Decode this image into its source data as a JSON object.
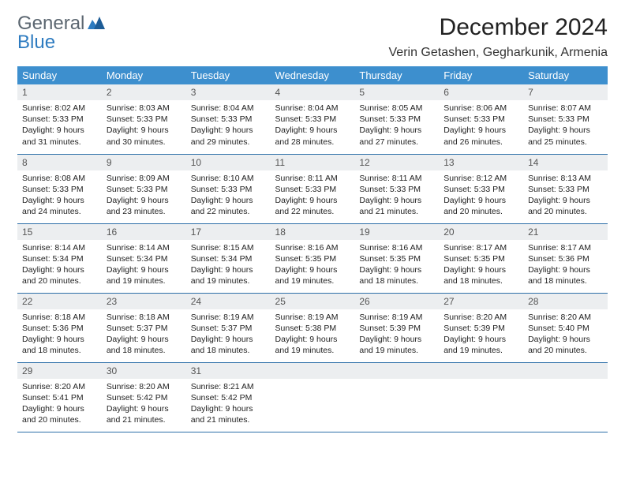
{
  "logo": {
    "top": "General",
    "bottom": "Blue",
    "mark_color": "#2d7bc0"
  },
  "title": "December 2024",
  "location": "Verin Getashen, Gegharkunik, Armenia",
  "header_bg": "#3d8fce",
  "header_fg": "#ffffff",
  "daynum_bg": "#eceef0",
  "border_color": "#2d6fa8",
  "weekdays": [
    "Sunday",
    "Monday",
    "Tuesday",
    "Wednesday",
    "Thursday",
    "Friday",
    "Saturday"
  ],
  "days": [
    {
      "n": "1",
      "sunrise": "8:02 AM",
      "sunset": "5:33 PM",
      "dl": "9 hours and 31 minutes."
    },
    {
      "n": "2",
      "sunrise": "8:03 AM",
      "sunset": "5:33 PM",
      "dl": "9 hours and 30 minutes."
    },
    {
      "n": "3",
      "sunrise": "8:04 AM",
      "sunset": "5:33 PM",
      "dl": "9 hours and 29 minutes."
    },
    {
      "n": "4",
      "sunrise": "8:04 AM",
      "sunset": "5:33 PM",
      "dl": "9 hours and 28 minutes."
    },
    {
      "n": "5",
      "sunrise": "8:05 AM",
      "sunset": "5:33 PM",
      "dl": "9 hours and 27 minutes."
    },
    {
      "n": "6",
      "sunrise": "8:06 AM",
      "sunset": "5:33 PM",
      "dl": "9 hours and 26 minutes."
    },
    {
      "n": "7",
      "sunrise": "8:07 AM",
      "sunset": "5:33 PM",
      "dl": "9 hours and 25 minutes."
    },
    {
      "n": "8",
      "sunrise": "8:08 AM",
      "sunset": "5:33 PM",
      "dl": "9 hours and 24 minutes."
    },
    {
      "n": "9",
      "sunrise": "8:09 AM",
      "sunset": "5:33 PM",
      "dl": "9 hours and 23 minutes."
    },
    {
      "n": "10",
      "sunrise": "8:10 AM",
      "sunset": "5:33 PM",
      "dl": "9 hours and 22 minutes."
    },
    {
      "n": "11",
      "sunrise": "8:11 AM",
      "sunset": "5:33 PM",
      "dl": "9 hours and 22 minutes."
    },
    {
      "n": "12",
      "sunrise": "8:11 AM",
      "sunset": "5:33 PM",
      "dl": "9 hours and 21 minutes."
    },
    {
      "n": "13",
      "sunrise": "8:12 AM",
      "sunset": "5:33 PM",
      "dl": "9 hours and 20 minutes."
    },
    {
      "n": "14",
      "sunrise": "8:13 AM",
      "sunset": "5:33 PM",
      "dl": "9 hours and 20 minutes."
    },
    {
      "n": "15",
      "sunrise": "8:14 AM",
      "sunset": "5:34 PM",
      "dl": "9 hours and 20 minutes."
    },
    {
      "n": "16",
      "sunrise": "8:14 AM",
      "sunset": "5:34 PM",
      "dl": "9 hours and 19 minutes."
    },
    {
      "n": "17",
      "sunrise": "8:15 AM",
      "sunset": "5:34 PM",
      "dl": "9 hours and 19 minutes."
    },
    {
      "n": "18",
      "sunrise": "8:16 AM",
      "sunset": "5:35 PM",
      "dl": "9 hours and 19 minutes."
    },
    {
      "n": "19",
      "sunrise": "8:16 AM",
      "sunset": "5:35 PM",
      "dl": "9 hours and 18 minutes."
    },
    {
      "n": "20",
      "sunrise": "8:17 AM",
      "sunset": "5:35 PM",
      "dl": "9 hours and 18 minutes."
    },
    {
      "n": "21",
      "sunrise": "8:17 AM",
      "sunset": "5:36 PM",
      "dl": "9 hours and 18 minutes."
    },
    {
      "n": "22",
      "sunrise": "8:18 AM",
      "sunset": "5:36 PM",
      "dl": "9 hours and 18 minutes."
    },
    {
      "n": "23",
      "sunrise": "8:18 AM",
      "sunset": "5:37 PM",
      "dl": "9 hours and 18 minutes."
    },
    {
      "n": "24",
      "sunrise": "8:19 AM",
      "sunset": "5:37 PM",
      "dl": "9 hours and 18 minutes."
    },
    {
      "n": "25",
      "sunrise": "8:19 AM",
      "sunset": "5:38 PM",
      "dl": "9 hours and 19 minutes."
    },
    {
      "n": "26",
      "sunrise": "8:19 AM",
      "sunset": "5:39 PM",
      "dl": "9 hours and 19 minutes."
    },
    {
      "n": "27",
      "sunrise": "8:20 AM",
      "sunset": "5:39 PM",
      "dl": "9 hours and 19 minutes."
    },
    {
      "n": "28",
      "sunrise": "8:20 AM",
      "sunset": "5:40 PM",
      "dl": "9 hours and 20 minutes."
    },
    {
      "n": "29",
      "sunrise": "8:20 AM",
      "sunset": "5:41 PM",
      "dl": "9 hours and 20 minutes."
    },
    {
      "n": "30",
      "sunrise": "8:20 AM",
      "sunset": "5:42 PM",
      "dl": "9 hours and 21 minutes."
    },
    {
      "n": "31",
      "sunrise": "8:21 AM",
      "sunset": "5:42 PM",
      "dl": "9 hours and 21 minutes."
    }
  ],
  "labels": {
    "sunrise": "Sunrise:",
    "sunset": "Sunset:",
    "daylight": "Daylight:"
  }
}
